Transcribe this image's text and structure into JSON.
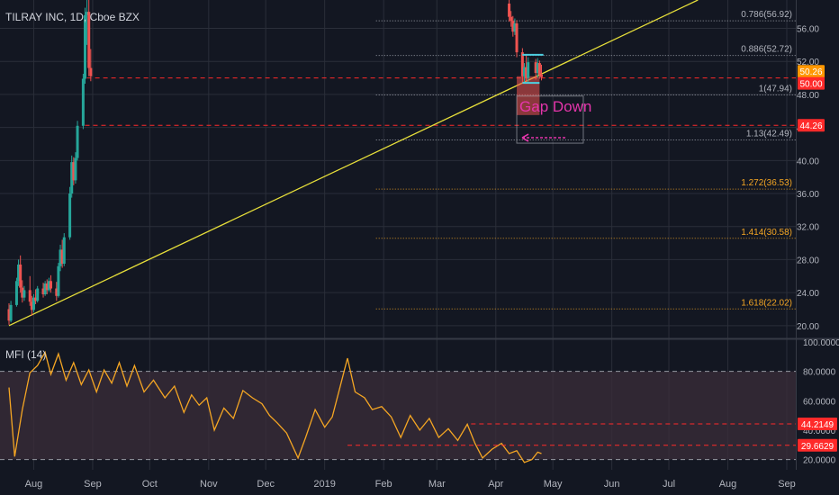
{
  "header": {
    "symbol_label": "TILRAY INC, 1D, Cboe BZX"
  },
  "colors": {
    "background": "#131722",
    "grid": "#2a2e39",
    "axis_text": "#b2b5be",
    "up": "#26a69a",
    "down": "#ef5350",
    "trendline": "#e8e03a",
    "fib_white": "#b2b5be",
    "fib_orange": "#f5a623",
    "red_line": "#ff2a2a",
    "mfi_line": "#f5a623",
    "mfi_band": "#3b2d3a",
    "annotation_pink": "#e535ab",
    "tag_orange": "#ff9800"
  },
  "chart_data": [
    {
      "type": "candlestick",
      "title": "TILRAY INC, 1D, Cboe BZX",
      "ylim": [
        19,
        59
      ],
      "y_ticks": [
        20.0,
        24.0,
        28.0,
        32.0,
        36.0,
        40.0,
        44.0,
        48.0,
        52.0,
        56.0
      ],
      "x_ticks": [
        "Aug",
        "Sep",
        "Oct",
        "Nov",
        "Dec",
        "2019",
        "Feb",
        "Mar",
        "Apr",
        "May",
        "Jun",
        "Jul",
        "Aug",
        "Sep"
      ],
      "candles": [
        {
          "date": "2018-07-19",
          "o": 22.0,
          "h": 22.7,
          "l": 20.1,
          "c": 20.6
        },
        {
          "date": "2018-07-20",
          "o": 20.6,
          "h": 23.0,
          "l": 20.4,
          "c": 22.5
        },
        {
          "date": "2018-07-23",
          "o": 22.5,
          "h": 25.8,
          "l": 22.3,
          "c": 25.4
        },
        {
          "date": "2018-07-24",
          "o": 25.4,
          "h": 28.0,
          "l": 24.8,
          "c": 27.4
        },
        {
          "date": "2018-07-25",
          "o": 27.4,
          "h": 28.5,
          "l": 24.0,
          "c": 24.6
        },
        {
          "date": "2018-07-26",
          "o": 24.6,
          "h": 25.5,
          "l": 22.8,
          "c": 23.4
        },
        {
          "date": "2018-07-27",
          "o": 23.4,
          "h": 24.8,
          "l": 23.0,
          "c": 24.3
        },
        {
          "date": "2018-07-30",
          "o": 24.3,
          "h": 26.0,
          "l": 22.4,
          "c": 22.9
        },
        {
          "date": "2018-07-31",
          "o": 22.9,
          "h": 23.6,
          "l": 21.2,
          "c": 21.9
        },
        {
          "date": "2018-08-01",
          "o": 21.9,
          "h": 23.8,
          "l": 21.6,
          "c": 23.4
        },
        {
          "date": "2018-08-02",
          "o": 23.4,
          "h": 24.4,
          "l": 22.6,
          "c": 23.0
        },
        {
          "date": "2018-08-03",
          "o": 23.0,
          "h": 24.8,
          "l": 22.8,
          "c": 24.5
        },
        {
          "date": "2018-08-06",
          "o": 24.5,
          "h": 25.2,
          "l": 23.4,
          "c": 23.8
        },
        {
          "date": "2018-08-07",
          "o": 23.8,
          "h": 25.4,
          "l": 23.6,
          "c": 25.1
        },
        {
          "date": "2018-08-08",
          "o": 25.1,
          "h": 25.6,
          "l": 23.8,
          "c": 24.3
        },
        {
          "date": "2018-08-09",
          "o": 24.3,
          "h": 25.8,
          "l": 24.1,
          "c": 25.4
        },
        {
          "date": "2018-08-10",
          "o": 25.4,
          "h": 26.1,
          "l": 24.0,
          "c": 24.5
        },
        {
          "date": "2018-08-13",
          "o": 24.5,
          "h": 25.3,
          "l": 23.0,
          "c": 23.6
        },
        {
          "date": "2018-08-14",
          "o": 23.6,
          "h": 27.6,
          "l": 23.4,
          "c": 27.2
        },
        {
          "date": "2018-08-15",
          "o": 27.2,
          "h": 29.8,
          "l": 26.6,
          "c": 29.2
        },
        {
          "date": "2018-08-16",
          "o": 29.2,
          "h": 30.4,
          "l": 27.0,
          "c": 27.5
        },
        {
          "date": "2018-08-17",
          "o": 27.5,
          "h": 31.2,
          "l": 27.2,
          "c": 30.7
        },
        {
          "date": "2018-08-20",
          "o": 30.7,
          "h": 36.8,
          "l": 30.4,
          "c": 36.0
        },
        {
          "date": "2018-08-21",
          "o": 36.0,
          "h": 40.6,
          "l": 35.5,
          "c": 39.8
        },
        {
          "date": "2018-08-22",
          "o": 39.8,
          "h": 40.4,
          "l": 37.0,
          "c": 37.6
        },
        {
          "date": "2018-08-23",
          "o": 37.6,
          "h": 41.0,
          "l": 37.2,
          "c": 40.3
        },
        {
          "date": "2018-08-24",
          "o": 40.3,
          "h": 44.8,
          "l": 40.0,
          "c": 44.2
        },
        {
          "date": "2018-08-27",
          "o": 44.2,
          "h": 50.5,
          "l": 43.8,
          "c": 49.9
        },
        {
          "date": "2018-08-28",
          "o": 49.9,
          "h": 58.5,
          "l": 49.3,
          "c": 57.6
        },
        {
          "date": "2018-08-29",
          "o": 57.6,
          "h": 59.8,
          "l": 54.0,
          "c": 58.0
        },
        {
          "date": "2018-08-30",
          "o": 58.0,
          "h": 59.5,
          "l": 50.2,
          "c": 51.2
        },
        {
          "date": "2018-08-31",
          "o": 51.2,
          "h": 53.5,
          "l": 49.6,
          "c": 50.2
        },
        {
          "date": "2019-04-08",
          "o": 59.0,
          "h": 59.8,
          "l": 56.8,
          "c": 57.4
        },
        {
          "date": "2019-04-09",
          "o": 57.4,
          "h": 58.1,
          "l": 56.2,
          "c": 56.9
        },
        {
          "date": "2019-04-10",
          "o": 56.9,
          "h": 57.5,
          "l": 55.0,
          "c": 55.6
        },
        {
          "date": "2019-04-11",
          "o": 55.6,
          "h": 57.2,
          "l": 55.2,
          "c": 56.6
        },
        {
          "date": "2019-04-12",
          "o": 56.6,
          "h": 57.0,
          "l": 52.5,
          "c": 53.1
        },
        {
          "date": "2019-04-15",
          "o": 53.1,
          "h": 53.6,
          "l": 49.4,
          "c": 50.2
        },
        {
          "date": "2019-04-16",
          "o": 50.2,
          "h": 51.8,
          "l": 49.5,
          "c": 51.3
        },
        {
          "date": "2019-04-17",
          "o": 51.3,
          "h": 52.8,
          "l": 49.6,
          "c": 50.0
        },
        {
          "date": "2019-04-18",
          "o": 50.0,
          "h": 52.5,
          "l": 49.4,
          "c": 51.9
        },
        {
          "date": "2019-04-22",
          "o": 51.9,
          "h": 52.3,
          "l": 49.8,
          "c": 50.6
        },
        {
          "date": "2019-04-23",
          "o": 50.6,
          "h": 52.4,
          "l": 50.0,
          "c": 51.8
        },
        {
          "date": "2019-04-24",
          "o": 51.8,
          "h": 52.1,
          "l": 49.9,
          "c": 50.4
        },
        {
          "date": "2019-04-25",
          "o": 50.4,
          "h": 51.6,
          "l": 49.7,
          "c": 50.1
        }
      ],
      "fib_levels": [
        {
          "label": "0.786(56.92)",
          "value": 56.92,
          "color": "white"
        },
        {
          "label": "0.886(52.72)",
          "value": 52.72,
          "color": "white"
        },
        {
          "label": "1(47.94)",
          "value": 47.94,
          "color": "white"
        },
        {
          "label": "1.13(42.49)",
          "value": 42.49,
          "color": "white"
        },
        {
          "label": "1.272(36.53)",
          "value": 36.53,
          "color": "orange"
        },
        {
          "label": "1.414(30.58)",
          "value": 30.58,
          "color": "orange"
        },
        {
          "label": "1.618(22.02)",
          "value": 22.02,
          "color": "orange"
        }
      ],
      "horizontal_lines": [
        {
          "value": 50.0,
          "label": "50.00",
          "from": "2018-08-29"
        },
        {
          "value": 44.26,
          "label": "44.26",
          "from": "2018-08-28"
        }
      ],
      "price_tags": [
        {
          "value": 50.26,
          "label": "50.26",
          "color": "orange"
        },
        {
          "value": 50.0,
          "label": "50.00",
          "color": "red"
        },
        {
          "value": 44.26,
          "label": "44.26",
          "color": "red"
        }
      ],
      "trendline": {
        "start": {
          "date": "2018-07-19",
          "value": 20.0
        },
        "through": {
          "date": "2019-04-16",
          "value": 49.5
        }
      },
      "annotation": {
        "text": "Gap Down",
        "top": 47.8,
        "bottom": 42.1,
        "from": "2019-04-12",
        "to": "2019-05-17"
      },
      "gap_box": {
        "top": 50.2,
        "bottom": 45.5,
        "from": "2019-04-12",
        "to": "2019-04-24"
      }
    },
    {
      "type": "line",
      "title": "MFI (14)",
      "ylim": [
        13,
        100
      ],
      "y_ticks": [
        "100.0000",
        "80.0000",
        "60.0000",
        "40.0000",
        "20.0000"
      ],
      "band": [
        20,
        80
      ],
      "series": [
        {
          "values": [
            {
              "date": "2018-07-19",
              "v": 69
            },
            {
              "date": "2018-07-22",
              "v": 22
            },
            {
              "date": "2018-07-26",
              "v": 54
            },
            {
              "date": "2018-07-30",
              "v": 79
            },
            {
              "date": "2018-08-03",
              "v": 84
            },
            {
              "date": "2018-08-07",
              "v": 93
            },
            {
              "date": "2018-08-10",
              "v": 78
            },
            {
              "date": "2018-08-14",
              "v": 92
            },
            {
              "date": "2018-08-18",
              "v": 74
            },
            {
              "date": "2018-08-22",
              "v": 86
            },
            {
              "date": "2018-08-26",
              "v": 71
            },
            {
              "date": "2018-08-30",
              "v": 81
            },
            {
              "date": "2018-09-03",
              "v": 66
            },
            {
              "date": "2018-09-07",
              "v": 81
            },
            {
              "date": "2018-09-11",
              "v": 72
            },
            {
              "date": "2018-09-15",
              "v": 86
            },
            {
              "date": "2018-09-19",
              "v": 70
            },
            {
              "date": "2018-09-23",
              "v": 84
            },
            {
              "date": "2018-09-28",
              "v": 66
            },
            {
              "date": "2018-10-03",
              "v": 74
            },
            {
              "date": "2018-10-09",
              "v": 62
            },
            {
              "date": "2018-10-14",
              "v": 70
            },
            {
              "date": "2018-10-19",
              "v": 52
            },
            {
              "date": "2018-10-23",
              "v": 64
            },
            {
              "date": "2018-10-27",
              "v": 57
            },
            {
              "date": "2018-10-31",
              "v": 62
            },
            {
              "date": "2018-11-04",
              "v": 40
            },
            {
              "date": "2018-11-09",
              "v": 55
            },
            {
              "date": "2018-11-14",
              "v": 48
            },
            {
              "date": "2018-11-19",
              "v": 67
            },
            {
              "date": "2018-11-24",
              "v": 62
            },
            {
              "date": "2018-11-29",
              "v": 58
            },
            {
              "date": "2018-12-03",
              "v": 50
            },
            {
              "date": "2018-12-07",
              "v": 45
            },
            {
              "date": "2018-12-12",
              "v": 38
            },
            {
              "date": "2018-12-18",
              "v": 21
            },
            {
              "date": "2018-12-22",
              "v": 35
            },
            {
              "date": "2018-12-27",
              "v": 54
            },
            {
              "date": "2019-01-01",
              "v": 42
            },
            {
              "date": "2019-01-05",
              "v": 49
            },
            {
              "date": "2019-01-09",
              "v": 69
            },
            {
              "date": "2019-01-13",
              "v": 89
            },
            {
              "date": "2019-01-17",
              "v": 66
            },
            {
              "date": "2019-01-22",
              "v": 62
            },
            {
              "date": "2019-01-26",
              "v": 54
            },
            {
              "date": "2019-01-31",
              "v": 56
            },
            {
              "date": "2019-02-05",
              "v": 49
            },
            {
              "date": "2019-02-10",
              "v": 35
            },
            {
              "date": "2019-02-15",
              "v": 50
            },
            {
              "date": "2019-02-20",
              "v": 40
            },
            {
              "date": "2019-02-25",
              "v": 48
            },
            {
              "date": "2019-03-02",
              "v": 35
            },
            {
              "date": "2019-03-07",
              "v": 41
            },
            {
              "date": "2019-03-12",
              "v": 33
            },
            {
              "date": "2019-03-17",
              "v": 44
            },
            {
              "date": "2019-03-21",
              "v": 31
            },
            {
              "date": "2019-03-25",
              "v": 21
            },
            {
              "date": "2019-03-30",
              "v": 27
            },
            {
              "date": "2019-04-04",
              "v": 31
            },
            {
              "date": "2019-04-08",
              "v": 24
            },
            {
              "date": "2019-04-12",
              "v": 26
            },
            {
              "date": "2019-04-16",
              "v": 18
            },
            {
              "date": "2019-04-20",
              "v": 20
            },
            {
              "date": "2019-04-23",
              "v": 25
            },
            {
              "date": "2019-04-25",
              "v": 24
            }
          ]
        }
      ],
      "level_lines": [
        {
          "value": 44.2149,
          "label": "44.2149",
          "from": "2019-03-19"
        },
        {
          "value": 29.6629,
          "label": "29.6629",
          "from": "2019-01-13"
        }
      ]
    }
  ]
}
